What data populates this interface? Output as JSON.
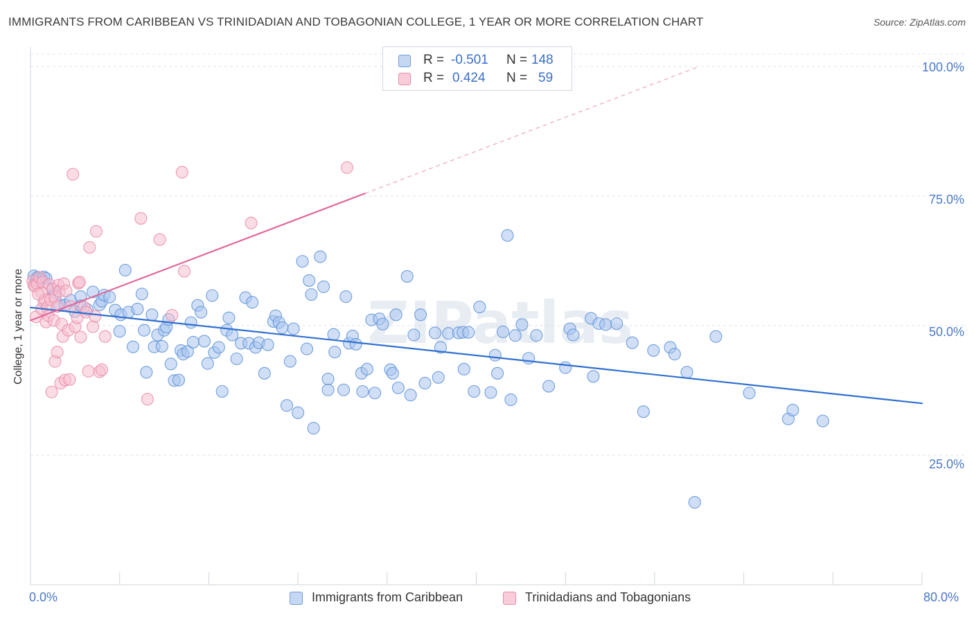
{
  "title": "IMMIGRANTS FROM CARIBBEAN VS TRINIDADIAN AND TOBAGONIAN COLLEGE, 1 YEAR OR MORE CORRELATION CHART",
  "source_label": "Source: ZipAtlas.com",
  "watermark": "ZIPatlas",
  "colors": {
    "blue_fill": "#a9c5ee",
    "blue_stroke": "#5b8fd6",
    "blue_line": "#2f6fd0",
    "pink_fill": "#f6bfd0",
    "pink_stroke": "#e78aa8",
    "pink_line": "#e0689a",
    "grid": "#dde3ec",
    "axis_text": "#4a78c8"
  },
  "legend": {
    "rows": [
      {
        "r_label": "R =",
        "r_value": "-0.501",
        "n_label": "N =",
        "n_value": "148"
      },
      {
        "r_label": "R =",
        "r_value": "0.424",
        "n_label": "N =",
        "n_value": "59"
      }
    ]
  },
  "chart_data": {
    "type": "scatter",
    "ylabel": "College, 1 year or more",
    "xlim": [
      0,
      80
    ],
    "ylim": [
      0,
      100
    ],
    "x_tick_labels": [
      "0.0%",
      "80.0%"
    ],
    "y_ticks": [
      {
        "value": 100,
        "label": "100.0%"
      },
      {
        "value": 75,
        "label": "75.0%"
      },
      {
        "value": 50,
        "label": "50.0%"
      },
      {
        "value": 25,
        "label": "25.0%"
      }
    ],
    "grid": true,
    "series": [
      {
        "name": "Immigrants from Caribbean",
        "color": "blue",
        "trend": {
          "x0": 0,
          "y0": 53.5,
          "x1": 80,
          "y1": 35.0,
          "dashed_extension": false
        },
        "points": [
          [
            0.3,
            59.6
          ],
          [
            0.5,
            58.6
          ],
          [
            0.6,
            59.3
          ],
          [
            0.8,
            59.1
          ],
          [
            1.0,
            58.9
          ],
          [
            1.2,
            59.4
          ],
          [
            1.4,
            59.1
          ],
          [
            2.0,
            56.9
          ],
          [
            2.2,
            56.3
          ],
          [
            2.6,
            54.0
          ],
          [
            3.1,
            54.0
          ],
          [
            3.6,
            54.9
          ],
          [
            4.0,
            52.7
          ],
          [
            4.5,
            55.6
          ],
          [
            4.5,
            53.8
          ],
          [
            5.1,
            53.1
          ],
          [
            5.6,
            56.5
          ],
          [
            6.2,
            54.0
          ],
          [
            6.4,
            54.7
          ],
          [
            6.6,
            55.9
          ],
          [
            7.1,
            55.5
          ],
          [
            7.6,
            53.0
          ],
          [
            8.0,
            48.9
          ],
          [
            8.1,
            52.1
          ],
          [
            8.5,
            60.7
          ],
          [
            8.8,
            52.6
          ],
          [
            9.2,
            45.9
          ],
          [
            9.6,
            53.2
          ],
          [
            10.0,
            56.1
          ],
          [
            10.2,
            49.1
          ],
          [
            10.4,
            41.0
          ],
          [
            10.9,
            52.1
          ],
          [
            11.1,
            45.9
          ],
          [
            11.4,
            48.2
          ],
          [
            11.8,
            46.0
          ],
          [
            12.0,
            49.1
          ],
          [
            12.2,
            49.7
          ],
          [
            12.4,
            51.2
          ],
          [
            12.6,
            42.6
          ],
          [
            12.9,
            39.4
          ],
          [
            13.3,
            39.5
          ],
          [
            13.5,
            45.2
          ],
          [
            13.7,
            44.5
          ],
          [
            14.1,
            45.0
          ],
          [
            14.4,
            50.6
          ],
          [
            14.6,
            46.8
          ],
          [
            15.0,
            53.9
          ],
          [
            15.3,
            52.6
          ],
          [
            15.6,
            47.0
          ],
          [
            15.9,
            42.7
          ],
          [
            16.3,
            55.8
          ],
          [
            16.5,
            44.8
          ],
          [
            16.9,
            45.8
          ],
          [
            17.2,
            37.3
          ],
          [
            17.6,
            49.1
          ],
          [
            17.8,
            51.5
          ],
          [
            18.1,
            48.2
          ],
          [
            18.5,
            43.6
          ],
          [
            18.9,
            46.6
          ],
          [
            19.3,
            55.4
          ],
          [
            19.6,
            46.6
          ],
          [
            19.9,
            54.5
          ],
          [
            20.2,
            45.8
          ],
          [
            20.5,
            46.7
          ],
          [
            21.0,
            40.8
          ],
          [
            21.3,
            46.3
          ],
          [
            21.8,
            50.8
          ],
          [
            22.0,
            51.9
          ],
          [
            22.3,
            50.6
          ],
          [
            22.6,
            49.6
          ],
          [
            23.0,
            34.6
          ],
          [
            23.3,
            43.1
          ],
          [
            23.6,
            49.4
          ],
          [
            24.0,
            33.2
          ],
          [
            24.4,
            62.4
          ],
          [
            24.8,
            45.5
          ],
          [
            25.0,
            58.7
          ],
          [
            25.2,
            56.0
          ],
          [
            25.4,
            30.2
          ],
          [
            26.0,
            63.3
          ],
          [
            26.3,
            57.5
          ],
          [
            26.7,
            39.7
          ],
          [
            26.7,
            37.6
          ],
          [
            27.2,
            48.3
          ],
          [
            27.3,
            44.9
          ],
          [
            28.1,
            37.6
          ],
          [
            28.3,
            55.6
          ],
          [
            28.6,
            46.6
          ],
          [
            28.9,
            48.0
          ],
          [
            29.2,
            46.4
          ],
          [
            29.7,
            40.8
          ],
          [
            29.8,
            37.3
          ],
          [
            30.2,
            41.6
          ],
          [
            30.6,
            51.1
          ],
          [
            30.9,
            37.0
          ],
          [
            31.3,
            51.3
          ],
          [
            31.6,
            50.3
          ],
          [
            32.3,
            41.5
          ],
          [
            32.5,
            40.8
          ],
          [
            32.8,
            52.1
          ],
          [
            33.0,
            38.0
          ],
          [
            33.8,
            59.5
          ],
          [
            34.1,
            36.6
          ],
          [
            34.4,
            48.2
          ],
          [
            35.0,
            52.1
          ],
          [
            35.4,
            38.9
          ],
          [
            36.3,
            48.6
          ],
          [
            36.6,
            40.0
          ],
          [
            36.8,
            45.8
          ],
          [
            37.5,
            48.5
          ],
          [
            38.4,
            48.6
          ],
          [
            38.8,
            48.7
          ],
          [
            38.9,
            41.6
          ],
          [
            39.3,
            48.7
          ],
          [
            39.8,
            37.3
          ],
          [
            40.3,
            53.6
          ],
          [
            41.3,
            37.1
          ],
          [
            41.7,
            44.3
          ],
          [
            41.9,
            40.8
          ],
          [
            42.4,
            48.8
          ],
          [
            42.8,
            67.4
          ],
          [
            43.1,
            35.7
          ],
          [
            43.5,
            48.1
          ],
          [
            44.1,
            50.2
          ],
          [
            44.7,
            43.7
          ],
          [
            45.4,
            48.1
          ],
          [
            46.5,
            38.3
          ],
          [
            48.0,
            41.9
          ],
          [
            48.4,
            49.4
          ],
          [
            48.7,
            48.2
          ],
          [
            50.3,
            51.4
          ],
          [
            50.5,
            40.2
          ],
          [
            51.0,
            50.4
          ],
          [
            51.6,
            50.2
          ],
          [
            52.6,
            50.4
          ],
          [
            54.0,
            46.7
          ],
          [
            55.0,
            33.4
          ],
          [
            55.9,
            45.2
          ],
          [
            57.4,
            45.8
          ],
          [
            57.8,
            44.5
          ],
          [
            58.9,
            41.0
          ],
          [
            59.6,
            15.9
          ],
          [
            61.5,
            47.9
          ],
          [
            64.5,
            37.0
          ],
          [
            68.0,
            32.0
          ],
          [
            68.4,
            33.7
          ],
          [
            71.1,
            31.6
          ]
        ]
      },
      {
        "name": "Trinidadians and Tobagonians",
        "color": "pink",
        "trend": {
          "x0": 0,
          "y0": 51.0,
          "x1": 30.0,
          "y1": 75.5,
          "dashed_extension": true,
          "dash_x1": 60.0,
          "dash_y1": 100.0
        },
        "points": [
          [
            0.2,
            58.6
          ],
          [
            0.3,
            57.8
          ],
          [
            0.4,
            57.6
          ],
          [
            0.5,
            51.7
          ],
          [
            0.6,
            58.0
          ],
          [
            0.8,
            59.3
          ],
          [
            1.0,
            56.4
          ],
          [
            1.0,
            53.2
          ],
          [
            1.1,
            58.4
          ],
          [
            1.2,
            54.6
          ],
          [
            1.3,
            55.0
          ],
          [
            1.4,
            50.7
          ],
          [
            1.5,
            53.5
          ],
          [
            1.6,
            51.9
          ],
          [
            1.7,
            57.9
          ],
          [
            1.8,
            55.0
          ],
          [
            1.9,
            37.2
          ],
          [
            2.0,
            57.1
          ],
          [
            2.1,
            51.0
          ],
          [
            2.2,
            55.5
          ],
          [
            2.2,
            43.1
          ],
          [
            2.4,
            44.9
          ],
          [
            2.5,
            57.8
          ],
          [
            2.6,
            56.6
          ],
          [
            2.7,
            38.9
          ],
          [
            2.8,
            50.3
          ],
          [
            2.9,
            47.9
          ],
          [
            3.0,
            58.1
          ],
          [
            3.1,
            39.5
          ],
          [
            3.2,
            56.7
          ],
          [
            3.4,
            49.1
          ],
          [
            3.5,
            39.6
          ],
          [
            3.8,
            79.2
          ],
          [
            4.0,
            49.8
          ],
          [
            4.2,
            51.5
          ],
          [
            4.3,
            58.2
          ],
          [
            4.5,
            47.8
          ],
          [
            4.8,
            53.6
          ],
          [
            5.0,
            52.6
          ],
          [
            5.2,
            41.2
          ],
          [
            5.3,
            65.1
          ],
          [
            5.6,
            49.8
          ],
          [
            5.8,
            51.8
          ],
          [
            5.9,
            68.2
          ],
          [
            6.2,
            41.1
          ],
          [
            6.4,
            41.5
          ],
          [
            6.7,
            47.9
          ],
          [
            9.9,
            70.7
          ],
          [
            10.5,
            35.8
          ],
          [
            11.6,
            66.6
          ],
          [
            12.7,
            52.0
          ],
          [
            13.6,
            79.6
          ],
          [
            13.8,
            60.5
          ],
          [
            19.8,
            69.8
          ],
          [
            28.4,
            80.5
          ],
          [
            0.7,
            56.1
          ],
          [
            2.4,
            53.7
          ],
          [
            3.6,
            53.7
          ],
          [
            4.4,
            58.4
          ]
        ]
      }
    ]
  }
}
